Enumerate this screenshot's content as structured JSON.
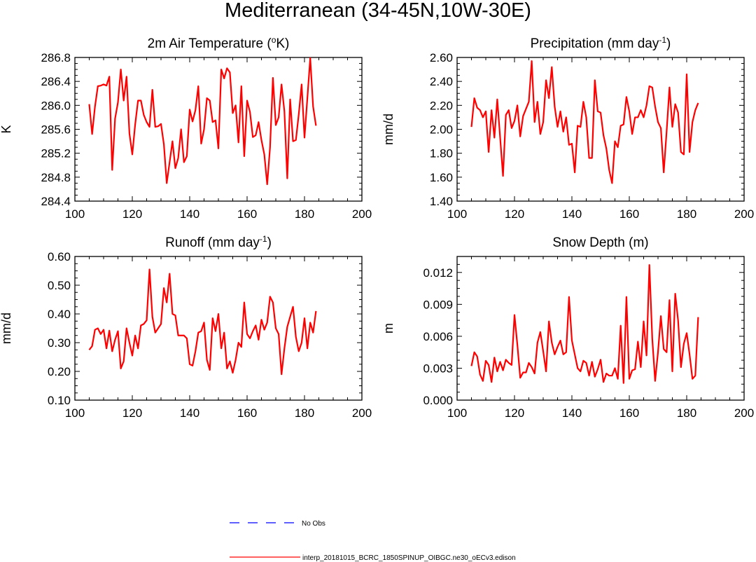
{
  "figure": {
    "title": "Mediterranean (34-45N,10W-30E)"
  },
  "chart_data": [
    {
      "type": "line",
      "title": "2m Air Temperature (°K)",
      "xlabel": "",
      "ylabel": "K",
      "xlim": [
        100,
        200
      ],
      "ylim": [
        284.4,
        286.8
      ],
      "xticks": [
        100,
        120,
        140,
        160,
        180,
        200
      ],
      "yticks": [
        284.4,
        284.8,
        285.2,
        285.6,
        286.0,
        286.4,
        286.8
      ],
      "ytick_labels": [
        "284.4",
        "284.8",
        "285.2",
        "285.6",
        "286.0",
        "286.4",
        "286.8"
      ],
      "grid": false,
      "x_start": 105,
      "series": [
        {
          "name": "interp_20181015_BCRC_1850SPINUP_OIBGC.ne30_oECv3.edison",
          "color": "#ff0000",
          "values": [
            286.02,
            285.52,
            285.98,
            286.32,
            286.33,
            286.35,
            286.33,
            286.48,
            284.92,
            285.78,
            286.05,
            286.6,
            286.08,
            286.48,
            285.53,
            285.18,
            285.68,
            286.08,
            286.08,
            285.84,
            285.72,
            285.64,
            286.26,
            285.64,
            285.65,
            285.69,
            285.35,
            284.7,
            285.05,
            285.4,
            284.95,
            285.12,
            285.6,
            285.05,
            285.15,
            285.93,
            285.73,
            285.92,
            286.32,
            285.36,
            285.6,
            286.12,
            286.08,
            285.72,
            285.75,
            285.28,
            286.6,
            286.45,
            286.62,
            286.55,
            285.87,
            286.0,
            285.38,
            286.32,
            285.15,
            286.08,
            285.89,
            285.47,
            285.5,
            285.72,
            285.42,
            285.18,
            284.68,
            285.3,
            286.46,
            285.67,
            285.8,
            286.35,
            285.9,
            284.78,
            286.1,
            285.4,
            285.42,
            285.85,
            286.35,
            285.46,
            286.12,
            286.79,
            285.98,
            285.66
          ]
        }
      ]
    },
    {
      "type": "line",
      "title": "Precipitation (mm day-1)",
      "xlabel": "",
      "ylabel": "mm/d",
      "xlim": [
        100,
        200
      ],
      "ylim": [
        1.4,
        2.6
      ],
      "xticks": [
        100,
        120,
        140,
        160,
        180,
        200
      ],
      "yticks": [
        1.4,
        1.6,
        1.8,
        2.0,
        2.2,
        2.4,
        2.6
      ],
      "ytick_labels": [
        "1.40",
        "1.60",
        "1.80",
        "2.00",
        "2.20",
        "2.40",
        "2.60"
      ],
      "grid": false,
      "x_start": 105,
      "series": [
        {
          "name": "interp_20181015_BCRC_1850SPINUP_OIBGC.ne30_oECv3.edison",
          "color": "#ff0000",
          "values": [
            2.02,
            2.26,
            2.18,
            2.16,
            2.1,
            2.15,
            1.81,
            2.16,
            1.93,
            2.25,
            1.93,
            1.61,
            2.12,
            2.16,
            2.01,
            2.07,
            2.2,
            1.94,
            2.11,
            2.17,
            2.23,
            2.57,
            2.06,
            2.23,
            1.96,
            2.06,
            2.41,
            2.26,
            2.52,
            2.19,
            2.02,
            2.15,
            1.98,
            2.1,
            1.87,
            1.88,
            1.64,
            2.03,
            2.02,
            2.23,
            2.1,
            1.76,
            1.76,
            2.41,
            2.15,
            2.14,
            1.95,
            1.84,
            1.66,
            1.55,
            1.9,
            1.85,
            2.03,
            2.04,
            2.27,
            2.15,
            1.96,
            2.1,
            2.1,
            2.16,
            2.1,
            2.2,
            2.36,
            2.35,
            2.19,
            2.06,
            2.01,
            1.64,
            1.98,
            2.35,
            2.02,
            2.21,
            2.14,
            1.81,
            1.79,
            2.46,
            1.81,
            2.06,
            2.16,
            2.22
          ]
        }
      ]
    },
    {
      "type": "line",
      "title": "Runoff (mm day-1)",
      "xlabel": "",
      "ylabel": "mm/d",
      "xlim": [
        100,
        200
      ],
      "ylim": [
        0.1,
        0.6
      ],
      "xticks": [
        100,
        120,
        140,
        160,
        180,
        200
      ],
      "yticks": [
        0.1,
        0.2,
        0.3,
        0.4,
        0.5,
        0.6
      ],
      "ytick_labels": [
        "0.10",
        "0.20",
        "0.30",
        "0.40",
        "0.50",
        "0.60"
      ],
      "grid": false,
      "x_start": 105,
      "series": [
        {
          "name": "interp_20181015_BCRC_1850SPINUP_OIBGC.ne30_oECv3.edison",
          "color": "#ff0000",
          "values": [
            0.275,
            0.288,
            0.345,
            0.35,
            0.33,
            0.345,
            0.28,
            0.342,
            0.27,
            0.31,
            0.34,
            0.21,
            0.235,
            0.35,
            0.3,
            0.255,
            0.325,
            0.28,
            0.36,
            0.365,
            0.378,
            0.555,
            0.39,
            0.335,
            0.35,
            0.365,
            0.49,
            0.44,
            0.54,
            0.4,
            0.395,
            0.325,
            0.325,
            0.325,
            0.315,
            0.225,
            0.22,
            0.27,
            0.335,
            0.34,
            0.37,
            0.24,
            0.205,
            0.385,
            0.34,
            0.4,
            0.28,
            0.335,
            0.21,
            0.235,
            0.195,
            0.24,
            0.3,
            0.285,
            0.44,
            0.33,
            0.315,
            0.34,
            0.36,
            0.31,
            0.38,
            0.345,
            0.37,
            0.46,
            0.44,
            0.35,
            0.33,
            0.19,
            0.28,
            0.355,
            0.39,
            0.425,
            0.32,
            0.27,
            0.3,
            0.385,
            0.28,
            0.37,
            0.335,
            0.41
          ]
        }
      ]
    },
    {
      "type": "line",
      "title": "Snow Depth (m)",
      "xlabel": "",
      "ylabel": "m",
      "xlim": [
        100,
        200
      ],
      "ylim": [
        0.0,
        0.0135
      ],
      "xticks": [
        100,
        120,
        140,
        160,
        180,
        200
      ],
      "yticks": [
        0.0,
        0.003,
        0.006,
        0.009,
        0.012
      ],
      "ytick_labels": [
        "0.000",
        "0.003",
        "0.006",
        "0.009",
        "0.012"
      ],
      "grid": false,
      "x_start": 105,
      "series": [
        {
          "name": "interp_20181015_BCRC_1850SPINUP_OIBGC.ne30_oECv3.edison",
          "color": "#ff0000",
          "values": [
            0.0032,
            0.0045,
            0.0041,
            0.0024,
            0.0018,
            0.0037,
            0.0033,
            0.0017,
            0.004,
            0.0027,
            0.0036,
            0.0028,
            0.0038,
            0.0035,
            0.0033,
            0.008,
            0.0052,
            0.0021,
            0.0026,
            0.0026,
            0.0035,
            0.0031,
            0.0025,
            0.0054,
            0.0064,
            0.0046,
            0.0027,
            0.0074,
            0.0054,
            0.0043,
            0.005,
            0.0056,
            0.0043,
            0.0045,
            0.0097,
            0.0056,
            0.0043,
            0.003,
            0.0027,
            0.0037,
            0.0035,
            0.0023,
            0.0036,
            0.0022,
            0.0029,
            0.0038,
            0.0017,
            0.0025,
            0.0023,
            0.0023,
            0.003,
            0.002,
            0.007,
            0.0016,
            0.0097,
            0.002,
            0.0028,
            0.0029,
            0.0055,
            0.0031,
            0.0074,
            0.0042,
            0.0127,
            0.0058,
            0.0018,
            0.0045,
            0.0079,
            0.0048,
            0.0045,
            0.0094,
            0.0027,
            0.01,
            0.0075,
            0.0031,
            0.0053,
            0.0063,
            0.0043,
            0.002,
            0.0023,
            0.0078
          ]
        }
      ]
    }
  ],
  "legend": {
    "items": [
      {
        "label": "No Obs",
        "color": "#0000ff",
        "style": "dashed"
      },
      {
        "label": "interp_20181015_BCRC_1850SPINUP_OIBGC.ne30_oECv3.edison",
        "color": "#ff0000",
        "style": "solid"
      }
    ]
  }
}
